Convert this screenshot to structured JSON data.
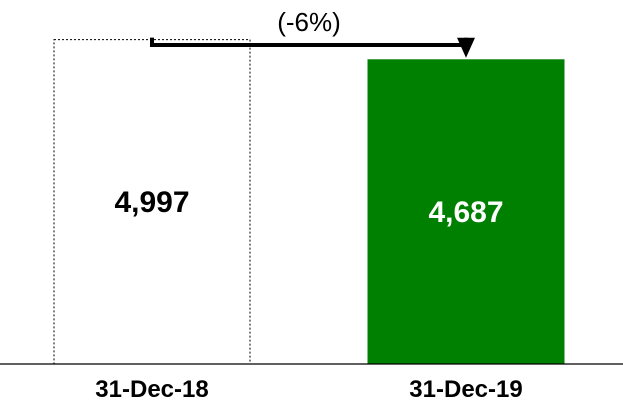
{
  "chart_data": {
    "type": "bar",
    "categories": [
      "31-Dec-18",
      "31-Dec-19"
    ],
    "values": [
      4997,
      4687
    ],
    "value_labels": [
      "4,997",
      "4,687"
    ],
    "change_label": "(-6%)",
    "ylim": [
      0,
      5300
    ],
    "grid": false,
    "bar_styles": [
      {
        "fill": "#ffffff",
        "stroke": "#000000",
        "dashed": true,
        "label_color": "#000000"
      },
      {
        "fill": "#008000",
        "stroke": "#008000",
        "dashed": false,
        "label_color": "#ffffff"
      }
    ]
  }
}
